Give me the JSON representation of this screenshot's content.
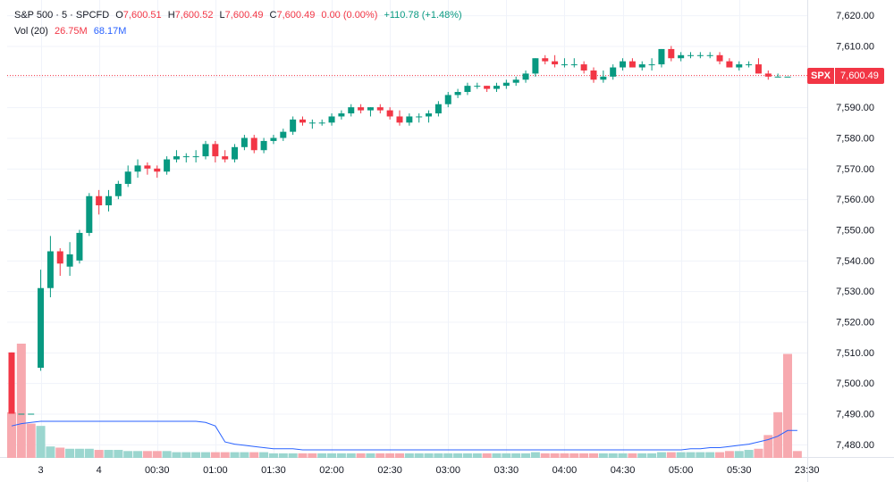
{
  "legend": {
    "symbol": "S&P 500 · 5 · SPCFD",
    "open_label": "O",
    "open": "7,600.51",
    "high_label": "H",
    "high": "7,600.52",
    "low_label": "L",
    "low": "7,600.49",
    "close_label": "C",
    "close": "7,600.49",
    "change": "0.00 (0.00%)",
    "change_total": "+110.78 (+1.48%)",
    "vol_label": "Vol (20)",
    "vol_value": "26.75M",
    "vol_ma": "68.17M"
  },
  "price_tag": {
    "symbol": "SPX",
    "value": "7,600.49"
  },
  "colors": {
    "up": "#089981",
    "down": "#f23645",
    "up_vol": "#9bd6cf",
    "down_vol": "#f7a9af",
    "ma": "#2962ff"
  },
  "chart_data": {
    "type": "candlestick",
    "ylim": [
      7475,
      7625
    ],
    "y_ticks": [
      "7,620.00",
      "7,610.00",
      "7,600.00",
      "7,590.00",
      "7,580.00",
      "7,570.00",
      "7,560.00",
      "7,550.00",
      "7,540.00",
      "7,530.00",
      "7,520.00",
      "7,510.00",
      "7,500.00",
      "7,490.00",
      "7,480.00"
    ],
    "y_tick_values": [
      7620,
      7610,
      7600,
      7590,
      7580,
      7570,
      7560,
      7550,
      7540,
      7530,
      7520,
      7510,
      7500,
      7490,
      7480
    ],
    "x_ticks": [
      {
        "label": "3",
        "index": 3
      },
      {
        "label": "4",
        "index": 9
      },
      {
        "label": "00:30",
        "index": 15
      },
      {
        "label": "01:00",
        "index": 21
      },
      {
        "label": "01:30",
        "index": 27
      },
      {
        "label": "02:00",
        "index": 33
      },
      {
        "label": "02:30",
        "index": 39
      },
      {
        "label": "03:00",
        "index": 45
      },
      {
        "label": "03:30",
        "index": 51
      },
      {
        "label": "04:00",
        "index": 57
      },
      {
        "label": "04:30",
        "index": 63
      },
      {
        "label": "05:00",
        "index": 69
      },
      {
        "label": "05:30",
        "index": 75
      },
      {
        "label": "23:30",
        "index": 82
      }
    ],
    "last_price": 7600.49,
    "candles": [
      [
        7510,
        7510,
        7490,
        7490
      ],
      [
        7490,
        7490,
        7490,
        7490
      ],
      [
        7490,
        7490,
        7490,
        7490
      ],
      [
        7505,
        7537,
        7504,
        7531
      ],
      [
        7531,
        7548,
        7528,
        7543
      ],
      [
        7543,
        7544,
        7535,
        7539
      ],
      [
        7538,
        7546,
        7535,
        7542
      ],
      [
        7540,
        7550,
        7539,
        7549
      ],
      [
        7549,
        7562,
        7548,
        7561
      ],
      [
        7561,
        7563,
        7555,
        7558
      ],
      [
        7558,
        7563,
        7556,
        7561
      ],
      [
        7561,
        7566,
        7560,
        7565
      ],
      [
        7565,
        7571,
        7564,
        7569
      ],
      [
        7569,
        7573,
        7567,
        7571
      ],
      [
        7571,
        7572,
        7568,
        7570
      ],
      [
        7570,
        7571,
        7567,
        7569
      ],
      [
        7569,
        7574,
        7568,
        7573
      ],
      [
        7573,
        7576,
        7572,
        7574
      ],
      [
        7574,
        7575,
        7572,
        7574
      ],
      [
        7574,
        7576,
        7572,
        7574
      ],
      [
        7574,
        7579,
        7573,
        7578
      ],
      [
        7578,
        7579,
        7572,
        7574
      ],
      [
        7574,
        7576,
        7572,
        7573
      ],
      [
        7573,
        7578,
        7572,
        7577
      ],
      [
        7577,
        7581,
        7576,
        7580
      ],
      [
        7580,
        7581,
        7575,
        7576
      ],
      [
        7576,
        7580,
        7575,
        7579
      ],
      [
        7579,
        7581,
        7578,
        7580
      ],
      [
        7580,
        7583,
        7579,
        7582
      ],
      [
        7582,
        7587,
        7581,
        7586
      ],
      [
        7586,
        7587,
        7584,
        7585
      ],
      [
        7585,
        7586,
        7583,
        7585
      ],
      [
        7585,
        7586,
        7584,
        7585
      ],
      [
        7585,
        7588,
        7584,
        7587
      ],
      [
        7587,
        7589,
        7586,
        7588
      ],
      [
        7588,
        7591,
        7587,
        7590
      ],
      [
        7590,
        7591,
        7588,
        7589
      ],
      [
        7589,
        7590,
        7587,
        7590
      ],
      [
        7590,
        7591,
        7588,
        7589
      ],
      [
        7589,
        7590,
        7586,
        7587
      ],
      [
        7587,
        7589,
        7584,
        7585
      ],
      [
        7585,
        7588,
        7584,
        7587
      ],
      [
        7587,
        7588,
        7585,
        7587
      ],
      [
        7587,
        7589,
        7585,
        7588
      ],
      [
        7588,
        7592,
        7587,
        7591
      ],
      [
        7591,
        7595,
        7590,
        7594
      ],
      [
        7594,
        7596,
        7593,
        7595
      ],
      [
        7595,
        7598,
        7594,
        7597
      ],
      [
        7597,
        7598,
        7596,
        7597
      ],
      [
        7597,
        7597,
        7595,
        7596
      ],
      [
        7596,
        7598,
        7595,
        7597
      ],
      [
        7597,
        7599,
        7596,
        7598
      ],
      [
        7598,
        7600,
        7597,
        7599
      ],
      [
        7599,
        7602,
        7598,
        7601
      ],
      [
        7601,
        7606,
        7600,
        7606
      ],
      [
        7606,
        7607,
        7604,
        7605
      ],
      [
        7605,
        7607,
        7603,
        7604
      ],
      [
        7604,
        7606,
        7603,
        7604
      ],
      [
        7604,
        7606,
        7603,
        7604
      ],
      [
        7604,
        7605,
        7601,
        7602
      ],
      [
        7602,
        7603,
        7598,
        7599
      ],
      [
        7599,
        7602,
        7598,
        7600
      ],
      [
        7600,
        7604,
        7599,
        7603
      ],
      [
        7603,
        7606,
        7602,
        7605
      ],
      [
        7605,
        7606,
        7603,
        7603
      ],
      [
        7603,
        7605,
        7602,
        7604
      ],
      [
        7604,
        7606,
        7602,
        7604
      ],
      [
        7604,
        7609,
        7603,
        7609
      ],
      [
        7609,
        7610,
        7605,
        7606
      ],
      [
        7606,
        7608,
        7605,
        7607
      ],
      [
        7607,
        7608,
        7606,
        7607
      ],
      [
        7607,
        7608,
        7606,
        7607
      ],
      [
        7607,
        7608,
        7606,
        7607
      ],
      [
        7607,
        7608,
        7604,
        7605
      ],
      [
        7605,
        7606,
        7603,
        7603
      ],
      [
        7603,
        7605,
        7602,
        7604
      ],
      [
        7604,
        7605,
        7603,
        7604
      ],
      [
        7604,
        7606,
        7601,
        7601
      ],
      [
        7601,
        7602,
        7599,
        7600
      ],
      [
        7600,
        7601,
        7600,
        7600
      ],
      [
        7600,
        7600,
        7600,
        7600
      ]
    ],
    "volume": [
      {
        "v": 40,
        "up": false
      },
      {
        "v": 100,
        "up": false
      },
      {
        "v": 30,
        "up": false
      },
      {
        "v": 28,
        "up": true
      },
      {
        "v": 10,
        "up": true
      },
      {
        "v": 9,
        "up": false
      },
      {
        "v": 8,
        "up": true
      },
      {
        "v": 8,
        "up": true
      },
      {
        "v": 8,
        "up": true
      },
      {
        "v": 7,
        "up": false
      },
      {
        "v": 7,
        "up": true
      },
      {
        "v": 7,
        "up": true
      },
      {
        "v": 6,
        "up": true
      },
      {
        "v": 6,
        "up": true
      },
      {
        "v": 6,
        "up": false
      },
      {
        "v": 6,
        "up": false
      },
      {
        "v": 6,
        "up": true
      },
      {
        "v": 5,
        "up": true
      },
      {
        "v": 5,
        "up": true
      },
      {
        "v": 5,
        "up": true
      },
      {
        "v": 5,
        "up": true
      },
      {
        "v": 5,
        "up": false
      },
      {
        "v": 5,
        "up": false
      },
      {
        "v": 5,
        "up": true
      },
      {
        "v": 5,
        "up": true
      },
      {
        "v": 5,
        "up": false
      },
      {
        "v": 5,
        "up": true
      },
      {
        "v": 4,
        "up": true
      },
      {
        "v": 4,
        "up": true
      },
      {
        "v": 4,
        "up": true
      },
      {
        "v": 4,
        "up": false
      },
      {
        "v": 4,
        "up": false
      },
      {
        "v": 4,
        "up": true
      },
      {
        "v": 4,
        "up": true
      },
      {
        "v": 4,
        "up": true
      },
      {
        "v": 4,
        "up": true
      },
      {
        "v": 4,
        "up": false
      },
      {
        "v": 4,
        "up": true
      },
      {
        "v": 4,
        "up": false
      },
      {
        "v": 4,
        "up": false
      },
      {
        "v": 4,
        "up": false
      },
      {
        "v": 4,
        "up": true
      },
      {
        "v": 4,
        "up": true
      },
      {
        "v": 4,
        "up": true
      },
      {
        "v": 4,
        "up": true
      },
      {
        "v": 4,
        "up": true
      },
      {
        "v": 4,
        "up": true
      },
      {
        "v": 4,
        "up": true
      },
      {
        "v": 4,
        "up": true
      },
      {
        "v": 4,
        "up": false
      },
      {
        "v": 4,
        "up": true
      },
      {
        "v": 4,
        "up": true
      },
      {
        "v": 4,
        "up": true
      },
      {
        "v": 4,
        "up": true
      },
      {
        "v": 5,
        "up": true
      },
      {
        "v": 4,
        "up": false
      },
      {
        "v": 4,
        "up": false
      },
      {
        "v": 4,
        "up": false
      },
      {
        "v": 4,
        "up": false
      },
      {
        "v": 4,
        "up": false
      },
      {
        "v": 4,
        "up": false
      },
      {
        "v": 4,
        "up": true
      },
      {
        "v": 4,
        "up": true
      },
      {
        "v": 4,
        "up": true
      },
      {
        "v": 4,
        "up": false
      },
      {
        "v": 4,
        "up": true
      },
      {
        "v": 4,
        "up": true
      },
      {
        "v": 5,
        "up": true
      },
      {
        "v": 5,
        "up": false
      },
      {
        "v": 5,
        "up": true
      },
      {
        "v": 5,
        "up": true
      },
      {
        "v": 5,
        "up": true
      },
      {
        "v": 5,
        "up": true
      },
      {
        "v": 5,
        "up": false
      },
      {
        "v": 6,
        "up": false
      },
      {
        "v": 6,
        "up": true
      },
      {
        "v": 7,
        "up": true
      },
      {
        "v": 8,
        "up": false
      },
      {
        "v": 20,
        "up": false
      },
      {
        "v": 40,
        "up": false
      },
      {
        "v": 91,
        "up": false
      },
      {
        "v": 6,
        "up": false
      }
    ],
    "volume_ma": [
      28,
      30,
      31,
      32,
      32,
      32,
      32,
      32,
      32,
      32,
      32,
      32,
      32,
      32,
      32,
      32,
      32,
      32,
      32,
      32,
      31,
      28,
      14,
      12,
      11,
      10,
      9,
      8,
      8,
      8,
      7,
      7,
      7,
      7,
      7,
      7,
      7,
      7,
      7,
      7,
      7,
      7,
      7,
      7,
      7,
      7,
      7,
      7,
      7,
      7,
      7,
      7,
      7,
      7,
      7,
      7,
      7,
      7,
      7,
      7,
      7,
      7,
      7,
      7,
      7,
      7,
      7,
      7,
      7,
      7,
      8,
      8,
      9,
      9,
      10,
      11,
      12,
      14,
      16,
      19,
      24,
      24
    ]
  }
}
